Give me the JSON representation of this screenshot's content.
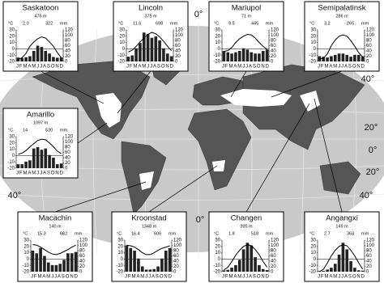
{
  "map": {
    "graticule_labels": [
      "0°",
      "0°",
      "40°",
      "20°",
      "0°",
      "20°",
      "40°",
      "40°"
    ]
  },
  "diagram_axes": {
    "temp_unit": "°C",
    "precip_unit": "mm",
    "months": "JFMAMJJASOND",
    "temp_lim": [
      -20,
      30
    ],
    "temp_ticks": [
      30,
      20,
      10,
      0,
      -10,
      -20
    ],
    "precip_lim": [
      0,
      120
    ],
    "precip_ticks": [
      120,
      100,
      80,
      60,
      40,
      20,
      0
    ]
  },
  "stations": [
    {
      "name": "Saskatoon",
      "elevation": "476 m",
      "mean_temp": "2.0",
      "annual_precip": "322",
      "temperature": [
        -17,
        -14,
        -7,
        4,
        11,
        16,
        19,
        17,
        11,
        4,
        -6,
        -14
      ],
      "precipitation": [
        15,
        13,
        16,
        20,
        40,
        60,
        55,
        40,
        30,
        17,
        14,
        15
      ]
    },
    {
      "name": "Lincoln",
      "elevation": "375 m",
      "mean_temp": "11.6",
      "annual_precip": "698",
      "temperature": [
        -5,
        -2,
        4,
        11,
        17,
        23,
        26,
        24,
        19,
        12,
        4,
        -3
      ],
      "precipitation": [
        18,
        23,
        50,
        70,
        110,
        105,
        90,
        95,
        80,
        50,
        30,
        20
      ]
    },
    {
      "name": "Mariupol",
      "elevation": "71 m",
      "mean_temp": "9.5",
      "annual_precip": "445",
      "temperature": [
        -4,
        -3,
        2,
        10,
        16,
        20,
        23,
        22,
        17,
        10,
        4,
        -1
      ],
      "precipitation": [
        40,
        35,
        30,
        35,
        40,
        50,
        45,
        35,
        30,
        30,
        40,
        45
      ]
    },
    {
      "name": "Semipalatinsk",
      "elevation": "286 m",
      "mean_temp": "3.2",
      "annual_precip": "265",
      "temperature": [
        -16,
        -15,
        -8,
        5,
        14,
        20,
        22,
        20,
        13,
        4,
        -6,
        -13
      ],
      "precipitation": [
        20,
        18,
        15,
        20,
        25,
        30,
        30,
        25,
        18,
        25,
        25,
        20
      ]
    },
    {
      "name": "Amarillo",
      "elevation": "1097 m",
      "mean_temp": "14",
      "annual_precip": "530",
      "temperature": [
        2,
        4,
        8,
        14,
        19,
        24,
        26,
        25,
        20,
        14,
        7,
        3
      ],
      "precipitation": [
        15,
        15,
        25,
        30,
        75,
        80,
        70,
        75,
        50,
        40,
        15,
        18
      ]
    },
    {
      "name": "Macachin",
      "elevation": "140 m",
      "mean_temp": "15.3",
      "annual_precip": "662",
      "temperature": [
        23,
        22,
        19,
        15,
        11,
        8,
        7,
        9,
        12,
        15,
        19,
        22
      ],
      "precipitation": [
        80,
        70,
        90,
        60,
        35,
        25,
        25,
        30,
        45,
        70,
        70,
        75
      ]
    },
    {
      "name": "Kroonstad",
      "elevation": "1348 m",
      "mean_temp": "16.4",
      "annual_precip": "606",
      "temperature": [
        22,
        21,
        19,
        15,
        10,
        7,
        7,
        10,
        14,
        17,
        19,
        21
      ],
      "precipitation": [
        100,
        90,
        80,
        50,
        20,
        8,
        8,
        10,
        20,
        50,
        80,
        90
      ]
    },
    {
      "name": "Changen",
      "elevation": "395 m",
      "mean_temp": "1.8",
      "annual_precip": "518",
      "temperature": [
        -17,
        -13,
        -4,
        6,
        14,
        20,
        23,
        21,
        15,
        7,
        -4,
        -13
      ],
      "precipitation": [
        5,
        7,
        15,
        25,
        45,
        85,
        110,
        100,
        55,
        25,
        10,
        6
      ]
    },
    {
      "name": "Angangxi",
      "elevation": "149 m",
      "mean_temp": "2.7",
      "annual_precip": "363",
      "temperature": [
        -20,
        -16,
        -6,
        5,
        14,
        20,
        23,
        21,
        14,
        5,
        -6,
        -16
      ],
      "precipitation": [
        3,
        3,
        8,
        15,
        30,
        65,
        110,
        85,
        40,
        15,
        5,
        4
      ]
    }
  ]
}
